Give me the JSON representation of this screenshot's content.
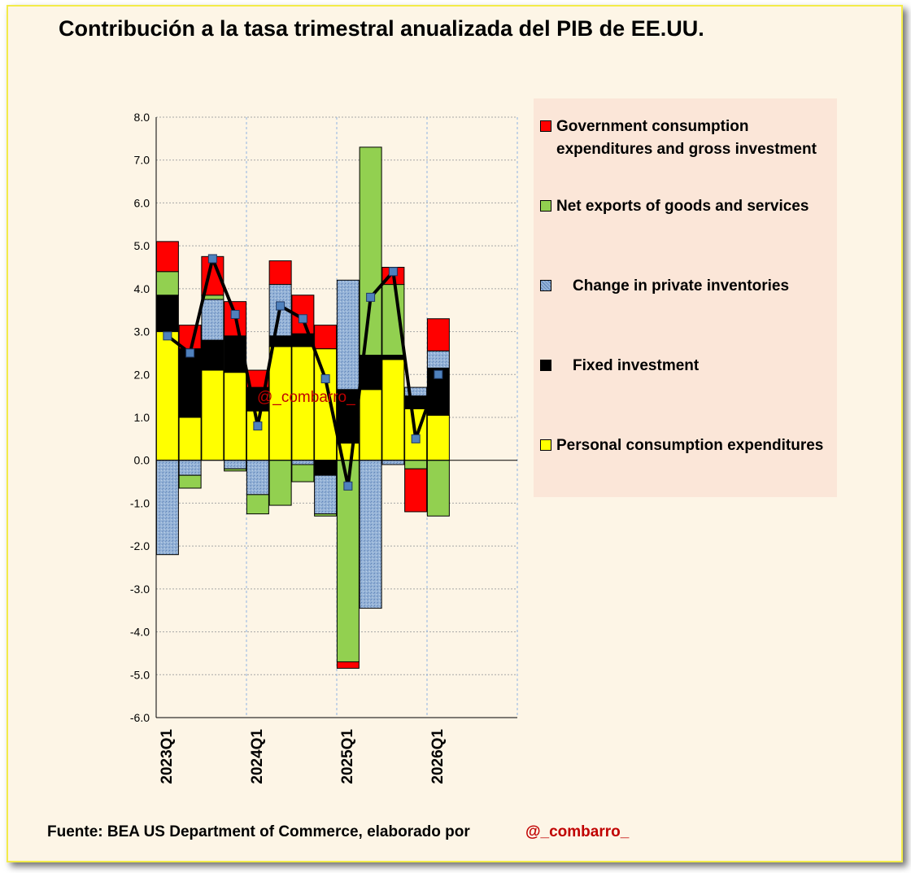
{
  "title": "Contribución a la tasa trimestral anualizada del PIB de EE.UU.",
  "footer": {
    "source": "Fuente: BEA US Department of Commerce, elaborado por",
    "handle": "@_combarro_"
  },
  "watermark": "@_combarro_",
  "colors": {
    "government": "#ff0000",
    "net_exports": "#92d050",
    "inventories": "#95b3d7",
    "fixed_investment": "#000000",
    "personal_consumption": "#ffff00",
    "gdp_line": "#000000",
    "gdp_marker": "#4f81bd"
  },
  "chart_data": {
    "type": "bar",
    "stacked": true,
    "title": "Contribución a la tasa trimestral anualizada del PIB de EE.UU.",
    "ylim": [
      -6.0,
      8.0
    ],
    "y_ticks": [
      "8.0",
      "7.0",
      "6.0",
      "5.0",
      "4.0",
      "3.0",
      "2.0",
      "1.0",
      "0.0",
      "-1.0",
      "-2.0",
      "-3.0",
      "-4.0",
      "-5.0",
      "-6.0"
    ],
    "x_tick_labels": [
      "2023Q1",
      "2024Q1",
      "2025Q1",
      "2026Q1"
    ],
    "categories": [
      "2023Q1",
      "2023Q2",
      "2023Q3",
      "2023Q4",
      "2024Q1",
      "2024Q2",
      "2024Q3",
      "2024Q4",
      "2025Q1",
      "2025Q2",
      "2025Q3",
      "2025Q4",
      "2026Q1"
    ],
    "legend_position": "right",
    "grid": true,
    "series": [
      {
        "name": "Personal consumption expenditures",
        "key": "personal_consumption",
        "values": [
          3.0,
          1.0,
          2.1,
          2.05,
          1.15,
          2.65,
          2.65,
          2.6,
          0.4,
          1.65,
          2.35,
          1.2,
          1.05
        ]
      },
      {
        "name": "Fixed investment",
        "key": "fixed_investment",
        "values": [
          0.85,
          1.6,
          0.7,
          0.85,
          0.55,
          0.25,
          0.3,
          -0.35,
          1.25,
          0.8,
          0.1,
          0.3,
          1.1
        ]
      },
      {
        "name": "Change in private inventories",
        "key": "inventories",
        "values": [
          -2.2,
          -0.35,
          0.95,
          -0.2,
          -0.8,
          1.2,
          -0.1,
          -0.9,
          2.55,
          -3.45,
          -0.1,
          0.2,
          0.4
        ]
      },
      {
        "name": "Net exports of goods and services",
        "key": "net_exports",
        "values": [
          0.55,
          -0.3,
          0.1,
          -0.05,
          -0.45,
          -1.05,
          -0.4,
          -0.05,
          -4.7,
          4.85,
          1.65,
          -0.2,
          -1.3
        ]
      },
      {
        "name": "Government consumption expenditures and gross investment",
        "key": "government",
        "values": [
          0.7,
          0.55,
          0.9,
          0.8,
          0.4,
          0.55,
          0.9,
          0.55,
          -0.15,
          0.0,
          0.4,
          -1.0,
          0.75
        ]
      }
    ],
    "gdp_line": [
      2.9,
      2.5,
      4.7,
      3.4,
      0.8,
      3.6,
      3.3,
      1.9,
      -0.6,
      3.8,
      4.4,
      0.5,
      2.0
    ],
    "legend": [
      {
        "key": "government",
        "label_lines": [
          "Government consumption",
          "expenditures and gross investment"
        ]
      },
      {
        "key": "net_exports",
        "label_lines": [
          "Net exports of goods and services"
        ]
      },
      {
        "key": "inventories",
        "label_lines": [
          "Change in private inventories"
        ]
      },
      {
        "key": "fixed_investment",
        "label_lines": [
          "Fixed investment"
        ]
      },
      {
        "key": "personal_consumption",
        "label_lines": [
          "Personal consumption expenditures"
        ]
      }
    ]
  }
}
